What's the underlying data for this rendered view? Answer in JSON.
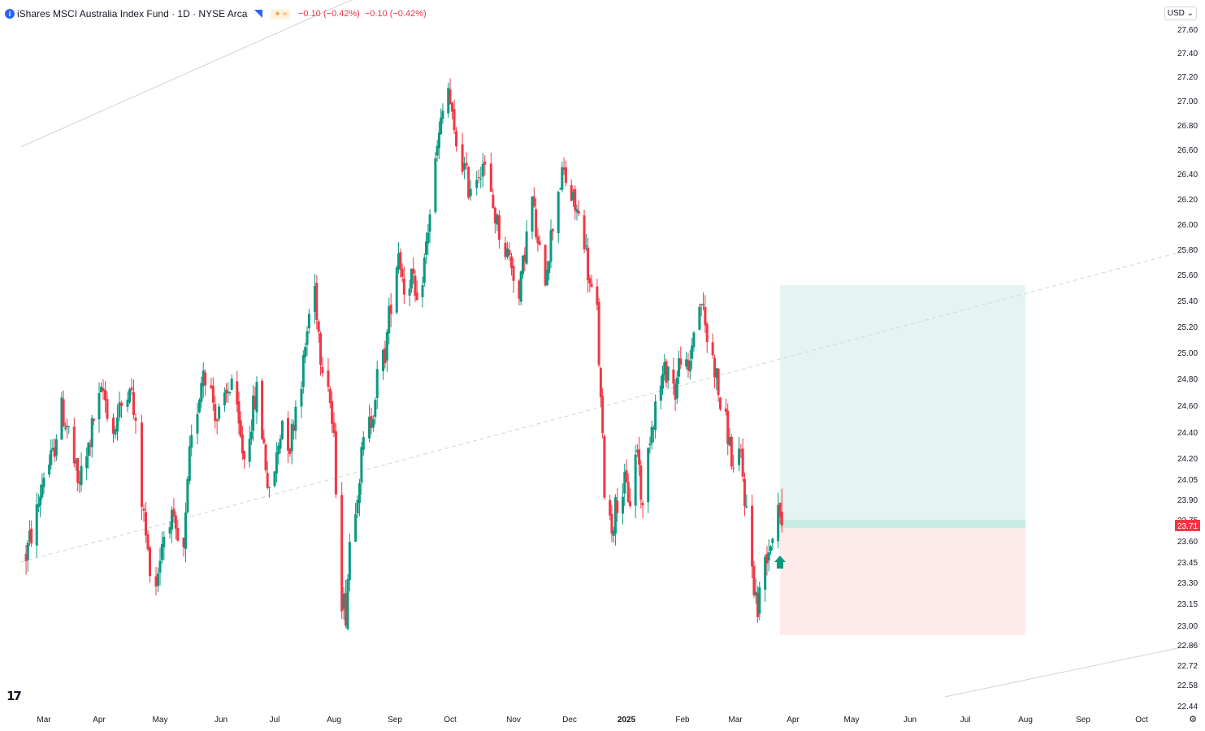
{
  "header": {
    "logo_letter": "i",
    "title": "iShares MSCI Australia Index Fund · 1D · NYSE Arca",
    "badge": "☀ ≈",
    "change1": "−0.10 (−0.42%)",
    "change2": "−0.10 (−0.42%)"
  },
  "currency_button": "USD ⌄",
  "tv_logo": "17",
  "settings_icon": "⚙",
  "colors": {
    "up": "#089981",
    "down": "#f23645",
    "target_zone": "#e5f4f0",
    "stop_zone": "#fdebeb",
    "entry_band": "#c9ebe2",
    "grid_text": "#131722"
  },
  "chart_data": {
    "type": "candlestick",
    "title": "iShares MSCI Australia Index Fund",
    "interval": "1D",
    "exchange": "NYSE Arca",
    "currency": "USD",
    "last_price": 23.71,
    "y_ticks": [
      27.6,
      27.4,
      27.2,
      27.0,
      26.8,
      26.6,
      26.4,
      26.2,
      26.0,
      25.8,
      25.6,
      25.4,
      25.2,
      25.0,
      24.8,
      24.6,
      24.4,
      24.2,
      24.05,
      23.9,
      23.75,
      23.6,
      23.45,
      23.3,
      23.15,
      23.0,
      22.86,
      22.72,
      22.58,
      22.44
    ],
    "y_tick_labels": [
      "27.60",
      "27.40",
      "27.20",
      "27.00",
      "26.80",
      "26.60",
      "26.40",
      "26.20",
      "26.00",
      "25.80",
      "25.60",
      "25.40",
      "25.20",
      "25.00",
      "24.80",
      "24.60",
      "24.40",
      "24.20",
      "24.05",
      "23.90",
      "23.75",
      "23.60",
      "23.45",
      "23.30",
      "23.15",
      "23.00",
      "22.86",
      "22.72",
      "22.58",
      "22.44"
    ],
    "x_labels": [
      "Mar",
      "Apr",
      "May",
      "Jun",
      "Jul",
      "Aug",
      "Sep",
      "Oct",
      "Nov",
      "Dec",
      "2025",
      "Feb",
      "Mar",
      "Apr",
      "May",
      "Jun",
      "Jul",
      "Aug",
      "Sep",
      "Oct"
    ],
    "x_label_bold": "2025",
    "price_path": [
      [
        "2024-02-20",
        23.5
      ],
      [
        "2024-02-26",
        23.8
      ],
      [
        "2024-03-01",
        24.1
      ],
      [
        "2024-03-06",
        24.2
      ],
      [
        "2024-03-10",
        24.6
      ],
      [
        "2024-03-15",
        24.4
      ],
      [
        "2024-03-20",
        24.0
      ],
      [
        "2024-03-25",
        24.2
      ],
      [
        "2024-03-29",
        24.5
      ],
      [
        "2024-04-03",
        24.7
      ],
      [
        "2024-04-08",
        24.4
      ],
      [
        "2024-04-12",
        24.6
      ],
      [
        "2024-04-16",
        24.8
      ],
      [
        "2024-04-19",
        24.4
      ],
      [
        "2024-04-22",
        23.9
      ],
      [
        "2024-04-25",
        23.5
      ],
      [
        "2024-04-29",
        23.3
      ],
      [
        "2024-05-02",
        23.6
      ],
      [
        "2024-05-06",
        23.8
      ],
      [
        "2024-05-09",
        23.6
      ],
      [
        "2024-05-13",
        23.5
      ],
      [
        "2024-05-16",
        24.2
      ],
      [
        "2024-05-20",
        24.6
      ],
      [
        "2024-05-23",
        24.9
      ],
      [
        "2024-05-27",
        24.7
      ],
      [
        "2024-05-30",
        24.5
      ],
      [
        "2024-06-03",
        24.6
      ],
      [
        "2024-06-07",
        24.8
      ],
      [
        "2024-06-11",
        24.4
      ],
      [
        "2024-06-14",
        24.2
      ],
      [
        "2024-06-18",
        24.5
      ],
      [
        "2024-06-21",
        24.7
      ],
      [
        "2024-06-25",
        24.3
      ],
      [
        "2024-06-28",
        23.9
      ],
      [
        "2024-07-02",
        24.2
      ],
      [
        "2024-07-05",
        24.5
      ],
      [
        "2024-07-09",
        24.3
      ],
      [
        "2024-07-12",
        24.6
      ],
      [
        "2024-07-16",
        24.9
      ],
      [
        "2024-07-19",
        25.3
      ],
      [
        "2024-07-22",
        25.5
      ],
      [
        "2024-07-25",
        25.0
      ],
      [
        "2024-07-29",
        24.8
      ],
      [
        "2024-08-01",
        24.3
      ],
      [
        "2024-08-05",
        23.2
      ],
      [
        "2024-08-07",
        23.1
      ],
      [
        "2024-08-09",
        23.6
      ],
      [
        "2024-08-13",
        24.0
      ],
      [
        "2024-08-16",
        24.3
      ],
      [
        "2024-08-20",
        24.5
      ],
      [
        "2024-08-23",
        24.8
      ],
      [
        "2024-08-27",
        25.0
      ],
      [
        "2024-08-30",
        25.4
      ],
      [
        "2024-09-03",
        25.8
      ],
      [
        "2024-09-06",
        25.5
      ],
      [
        "2024-09-10",
        25.6
      ],
      [
        "2024-09-13",
        25.3
      ],
      [
        "2024-09-17",
        25.7
      ],
      [
        "2024-09-20",
        26.1
      ],
      [
        "2024-09-24",
        26.6
      ],
      [
        "2024-09-27",
        26.9
      ],
      [
        "2024-09-30",
        27.1
      ],
      [
        "2024-10-03",
        26.7
      ],
      [
        "2024-10-07",
        26.5
      ],
      [
        "2024-10-10",
        26.3
      ],
      [
        "2024-10-14",
        26.4
      ],
      [
        "2024-10-17",
        26.5
      ],
      [
        "2024-10-21",
        26.2
      ],
      [
        "2024-10-24",
        26.0
      ],
      [
        "2024-10-28",
        25.8
      ],
      [
        "2024-10-31",
        25.7
      ],
      [
        "2024-11-04",
        25.4
      ],
      [
        "2024-11-07",
        25.8
      ],
      [
        "2024-11-11",
        26.2
      ],
      [
        "2024-11-14",
        25.8
      ],
      [
        "2024-11-18",
        25.6
      ],
      [
        "2024-11-21",
        25.9
      ],
      [
        "2024-11-25",
        26.3
      ],
      [
        "2024-11-28",
        26.4
      ],
      [
        "2024-12-02",
        26.2
      ],
      [
        "2024-12-05",
        26.1
      ],
      [
        "2024-12-09",
        25.9
      ],
      [
        "2024-12-12",
        25.5
      ],
      [
        "2024-12-16",
        25.3
      ],
      [
        "2024-12-18",
        24.6
      ],
      [
        "2024-12-20",
        24.0
      ],
      [
        "2024-12-24",
        23.7
      ],
      [
        "2024-12-27",
        23.9
      ],
      [
        "2024-12-31",
        24.0
      ],
      [
        "2025-01-03",
        23.9
      ],
      [
        "2025-01-07",
        24.3
      ],
      [
        "2025-01-10",
        23.8
      ],
      [
        "2025-01-14",
        24.4
      ],
      [
        "2025-01-17",
        24.6
      ],
      [
        "2025-01-21",
        24.8
      ],
      [
        "2025-01-24",
        24.9
      ],
      [
        "2025-01-28",
        24.7
      ],
      [
        "2025-01-31",
        25.0
      ],
      [
        "2025-02-04",
        24.8
      ],
      [
        "2025-02-07",
        25.2
      ],
      [
        "2025-02-11",
        25.4
      ],
      [
        "2025-02-14",
        25.1
      ],
      [
        "2025-02-18",
        24.9
      ],
      [
        "2025-02-21",
        24.6
      ],
      [
        "2025-02-25",
        24.4
      ],
      [
        "2025-02-28",
        24.1
      ],
      [
        "2025-03-04",
        24.2
      ],
      [
        "2025-03-07",
        23.8
      ],
      [
        "2025-03-11",
        23.3
      ],
      [
        "2025-03-13",
        23.1
      ],
      [
        "2025-03-17",
        23.5
      ],
      [
        "2025-03-20",
        23.6
      ],
      [
        "2025-03-24",
        23.9
      ],
      [
        "2025-03-26",
        23.71
      ]
    ],
    "position_tool": {
      "direction": "long",
      "start": "2025-03-25",
      "end": "2025-08-01",
      "target": 25.52,
      "entry": 23.75,
      "entry_band_low": 23.69,
      "stop": 22.93
    },
    "trend_lines": [
      {
        "style": "solid",
        "points": [
          [
            "2024-02-17",
            26.62
          ],
          [
            "2024-10-01",
            28.2
          ]
        ]
      },
      {
        "style": "dashed",
        "points": [
          [
            "2024-02-17",
            23.45
          ],
          [
            "2025-10-31",
            25.82
          ]
        ]
      },
      {
        "style": "solid",
        "points": [
          [
            "2025-06-20",
            22.5
          ],
          [
            "2025-10-31",
            22.87
          ]
        ]
      }
    ],
    "grid": false,
    "legend": "none"
  }
}
